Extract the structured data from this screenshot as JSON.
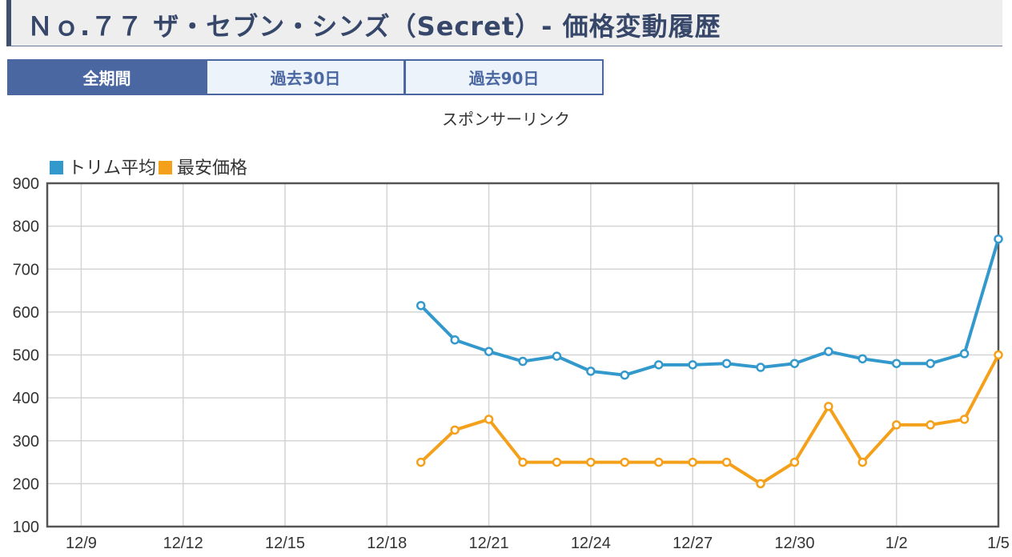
{
  "page": {
    "title": "Ｎｏ.７７ ザ・セブン・シンズ（Secret）- 価格変動履歴",
    "tabs": [
      {
        "label": "全期間",
        "active": true
      },
      {
        "label": "過去30日",
        "active": false
      },
      {
        "label": "過去90日",
        "active": false
      }
    ],
    "sponsor_text": "スポンサーリンク"
  },
  "colors": {
    "series_avg": "#3399cc",
    "series_min": "#f5a01a",
    "grid": "#d4d4d4",
    "axis": "#555555"
  },
  "chart_data": {
    "type": "line",
    "title": "",
    "xlabel": "",
    "ylabel": "",
    "ylim": [
      100,
      900
    ],
    "yticks": [
      100,
      200,
      300,
      400,
      500,
      600,
      700,
      800,
      900
    ],
    "xticks": [
      "12/9",
      "12/12",
      "12/15",
      "12/18",
      "12/21",
      "12/24",
      "12/27",
      "12/30",
      "1/2",
      "1/5"
    ],
    "x": [
      "12/19",
      "12/20",
      "12/21",
      "12/22",
      "12/23",
      "12/24",
      "12/25",
      "12/26",
      "12/27",
      "12/28",
      "12/29",
      "12/30",
      "12/31",
      "1/1",
      "1/2",
      "1/3",
      "1/4",
      "1/5"
    ],
    "grid": true,
    "legend": "top-left",
    "series": [
      {
        "name": "トリム平均",
        "values": [
          615,
          535,
          508,
          485,
          497,
          462,
          453,
          477,
          477,
          480,
          471,
          480,
          508,
          491,
          480,
          480,
          503,
          770
        ]
      },
      {
        "name": "最安価格",
        "values": [
          250,
          325,
          350,
          250,
          250,
          250,
          250,
          250,
          250,
          250,
          200,
          250,
          380,
          250,
          337,
          337,
          350,
          500
        ]
      }
    ]
  }
}
